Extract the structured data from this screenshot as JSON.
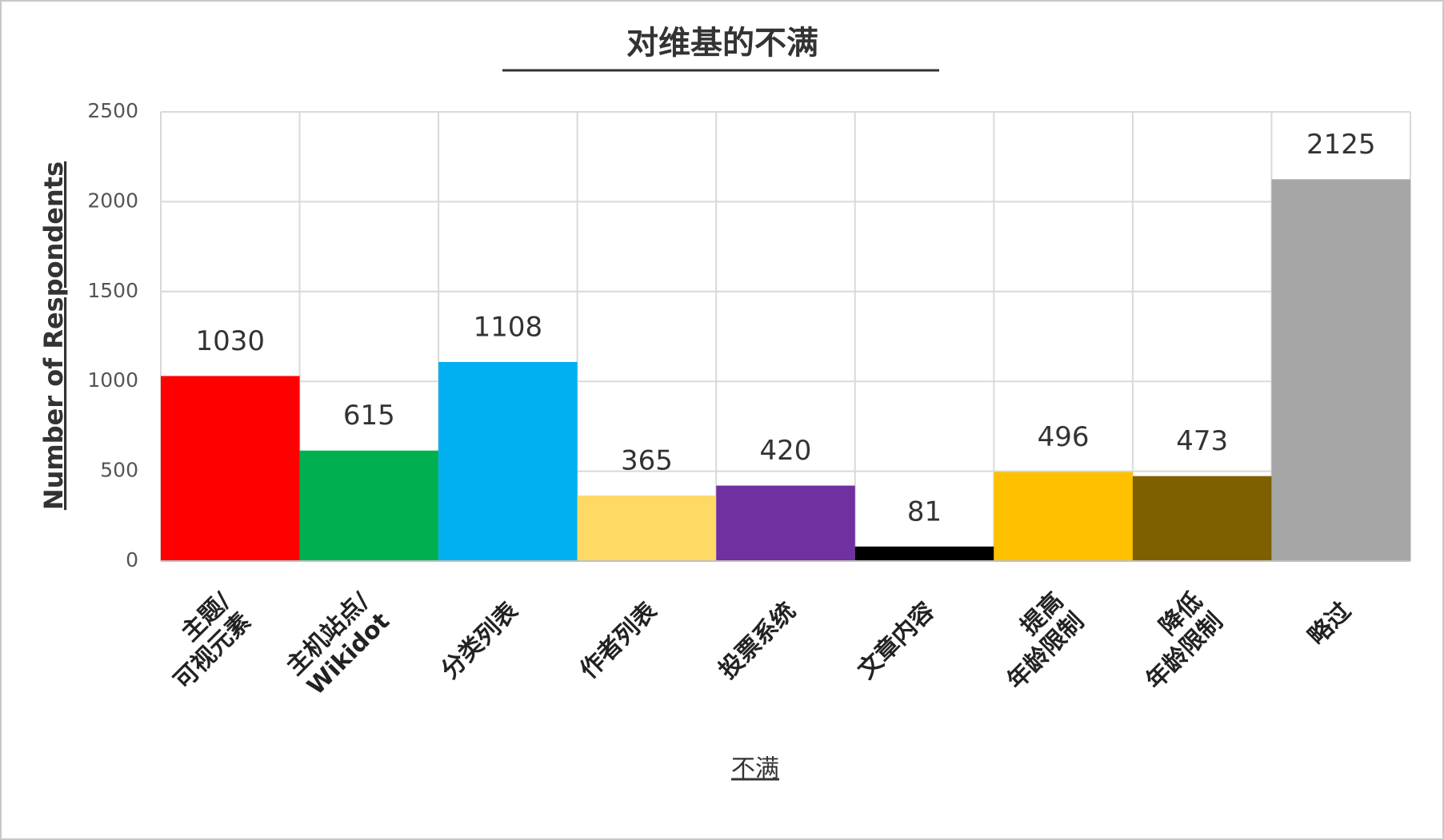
{
  "chart_data": {
    "type": "bar",
    "title": "对维基的不满",
    "x_label": "不满",
    "y_label": "Number of Respondents",
    "categories": [
      "主题/\n可视元素",
      "主机站点/\nWikidot",
      "分类列表",
      "作者列表",
      "投票系统",
      "文章内容",
      "提高\n年龄限制",
      "降低\n年龄限制",
      "略过"
    ],
    "values": [
      1030,
      615,
      1108,
      365,
      420,
      81,
      496,
      473,
      2125
    ],
    "colors": [
      "#ff0000",
      "#00b050",
      "#00b0f0",
      "#ffd966",
      "#7030a0",
      "#000000",
      "#ffc000",
      "#7f6000",
      "#a6a6a6"
    ],
    "ylim": [
      0,
      2500
    ],
    "yticks": [
      0,
      500,
      1000,
      1500,
      2000,
      2500
    ],
    "grid": true
  }
}
